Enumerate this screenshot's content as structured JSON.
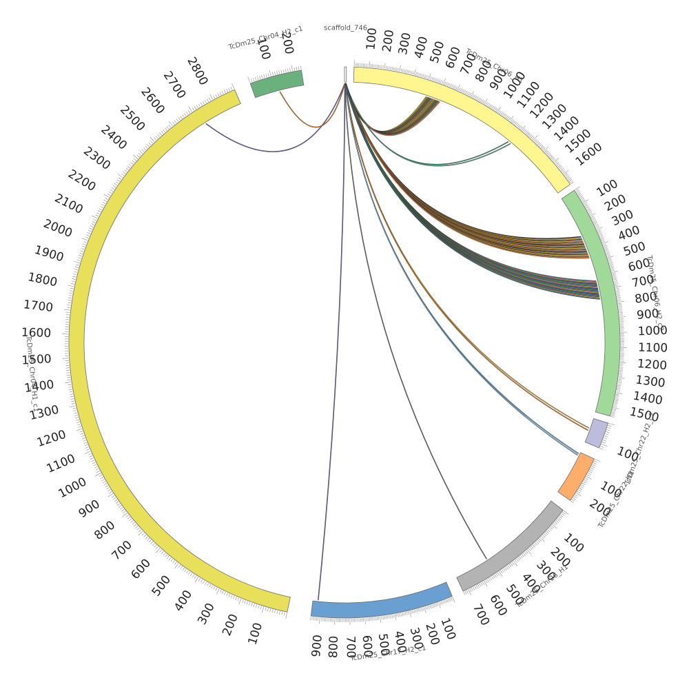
{
  "diagram": {
    "type": "circos",
    "segments": [
      {
        "id": "scaffold",
        "name": "scaffold_746",
        "length": 10,
        "color": "#ffffff",
        "tick_labels": []
      },
      {
        "id": "chr06h1",
        "name": "TcDm25_Chr06_H1",
        "length": 1680,
        "color": "#fff68f",
        "tick_labels": [
          100,
          200,
          300,
          400,
          500,
          600,
          700,
          800,
          900,
          1000,
          1100,
          1200,
          1300,
          1400,
          1500,
          1600
        ]
      },
      {
        "id": "chr06h2c2",
        "name": "TcDm25_Chr06_H2_c2",
        "length": 1560,
        "color": "#a1d99b",
        "tick_labels": [
          100,
          200,
          300,
          400,
          500,
          600,
          700,
          800,
          900,
          1000,
          1100,
          1200,
          1300,
          1400,
          1500
        ]
      },
      {
        "id": "chr22h2c2",
        "name": "TcDm25_Chr22_H2_c2",
        "length": 120,
        "color": "#bcbddc",
        "tick_labels": [
          100
        ]
      },
      {
        "id": "chr22h1",
        "name": "TcDm25_Chr22_H1",
        "length": 250,
        "color": "#fdae6b",
        "tick_labels": [
          100,
          200
        ]
      },
      {
        "id": "chr26h1",
        "name": "TcDm25_Chr26_H1",
        "length": 730,
        "color": "#b3b3b3",
        "tick_labels": [
          100,
          200,
          300,
          400,
          500,
          600,
          700
        ]
      },
      {
        "id": "chr17h2c1",
        "name": "TcDm25_Chr17_H2_c1",
        "length": 960,
        "color": "#6a9fd1",
        "tick_labels": [
          100,
          200,
          300,
          400,
          500,
          600,
          700,
          800,
          900
        ]
      },
      {
        "id": "chr04h1c1",
        "name": "TcDm25_Chr04_H1_c1",
        "length": 2900,
        "color": "#e8df5a",
        "tick_labels": [
          100,
          200,
          300,
          400,
          500,
          600,
          700,
          800,
          900,
          1000,
          1100,
          1200,
          1300,
          1400,
          1500,
          1600,
          1700,
          1800,
          1900,
          2000,
          2100,
          2200,
          2300,
          2400,
          2500,
          2600,
          2700,
          2800
        ]
      },
      {
        "id": "chr04h2c1",
        "name": "TcDm25_Chr04_H2_c1",
        "length": 240,
        "color": "#6bb17d",
        "tick_labels": [
          100,
          200
        ]
      }
    ],
    "link_groups": [
      {
        "target": "chr06h1",
        "from": 520,
        "to": 620,
        "count": 16,
        "colors": [
          "#b5a83c",
          "#d8922e",
          "#3a8c6e",
          "#6b6b2a",
          "#c2562e",
          "#2a6e8c",
          "#9c9c35",
          "#e07050"
        ]
      },
      {
        "target": "chr06h1",
        "from": 1180,
        "to": 1200,
        "count": 2,
        "colors": [
          "#2e8b57",
          "#5aa08a"
        ]
      },
      {
        "target": "chr06h2c2",
        "from": 300,
        "to": 460,
        "count": 18,
        "colors": [
          "#333333",
          "#caa030",
          "#6a4a2a",
          "#e0b040",
          "#8a6a3a",
          "#d07838"
        ]
      },
      {
        "target": "chr06h2c2",
        "from": 630,
        "to": 760,
        "count": 22,
        "colors": [
          "#2e8b8b",
          "#e07890",
          "#c8b040",
          "#3a6e9c",
          "#7a5a8c",
          "#5aa05a"
        ]
      },
      {
        "target": "chr22h2c2",
        "from": 50,
        "to": 62,
        "count": 2,
        "colors": [
          "#c8a030",
          "#d07020"
        ]
      },
      {
        "target": "chr22h1",
        "from": 10,
        "to": 20,
        "count": 2,
        "colors": [
          "#4a8ec8",
          "#7aa0b0"
        ]
      },
      {
        "target": "chr26h1",
        "from": 520,
        "to": 520,
        "count": 1,
        "colors": [
          "#666666"
        ]
      },
      {
        "target": "chr17h2c1",
        "from": 920,
        "to": 925,
        "count": 1,
        "colors": [
          "#6a5a9c"
        ]
      },
      {
        "target": "chr04h1c1",
        "from": 2720,
        "to": 2725,
        "count": 1,
        "colors": [
          "#6a5a9c"
        ]
      },
      {
        "target": "chr04h2c1",
        "from": 120,
        "to": 122,
        "count": 1,
        "colors": [
          "#d07020"
        ]
      }
    ]
  }
}
